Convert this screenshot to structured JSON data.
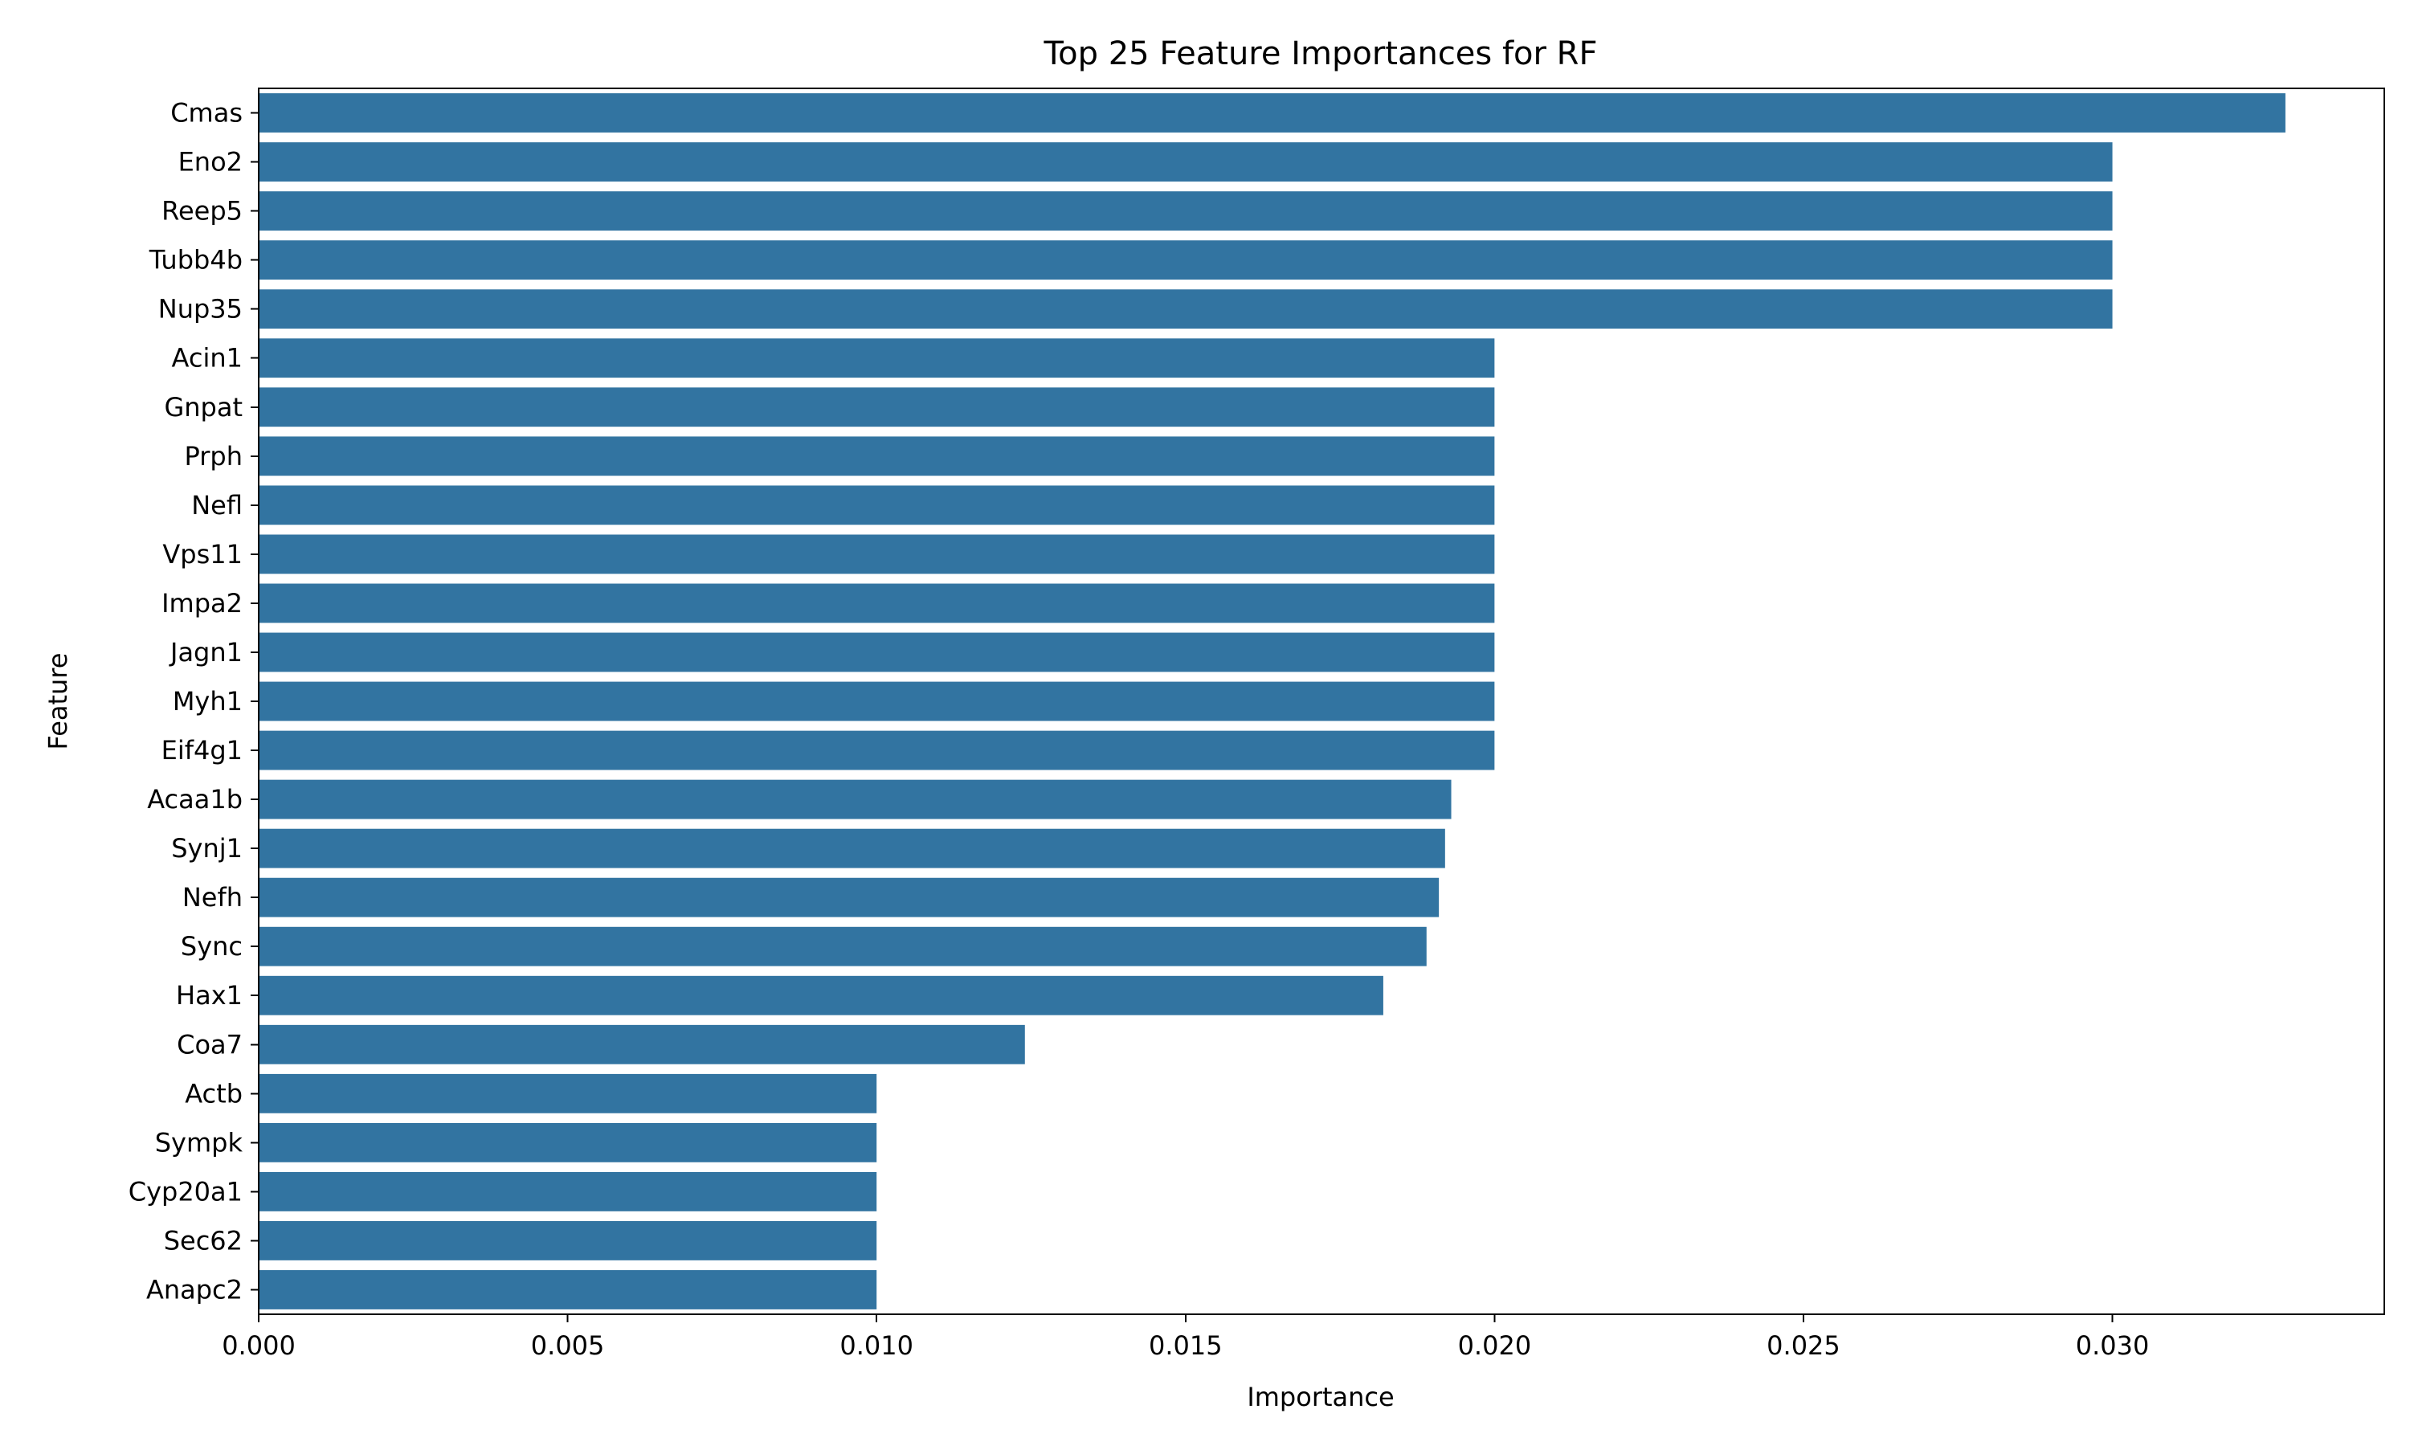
{
  "chart_data": {
    "type": "bar",
    "orientation": "horizontal",
    "title": "Top 25 Feature Importances for RF",
    "xlabel": "Importance",
    "ylabel": "Feature",
    "xlim": [
      0,
      0.0344
    ],
    "xticks": [
      "0.000",
      "0.005",
      "0.010",
      "0.015",
      "0.020",
      "0.025",
      "0.030"
    ],
    "grid": false,
    "bar_color": "#3274a1",
    "categories": [
      "Cmas",
      "Eno2",
      "Reep5",
      "Tubb4b",
      "Nup35",
      "Acin1",
      "Gnpat",
      "Prph",
      "Nefl",
      "Vps11",
      "Impa2",
      "Jagn1",
      "Myh1",
      "Eif4g1",
      "Acaa1b",
      "Synj1",
      "Nefh",
      "Sync",
      "Hax1",
      "Coa7",
      "Actb",
      "Sympk",
      "Cyp20a1",
      "Sec62",
      "Anapc2"
    ],
    "values": [
      0.0328,
      0.03,
      0.03,
      0.03,
      0.03,
      0.02,
      0.02,
      0.02,
      0.02,
      0.02,
      0.02,
      0.02,
      0.02,
      0.02,
      0.0193,
      0.0192,
      0.0191,
      0.0189,
      0.0182,
      0.0124,
      0.01,
      0.01,
      0.01,
      0.01,
      0.01
    ]
  }
}
